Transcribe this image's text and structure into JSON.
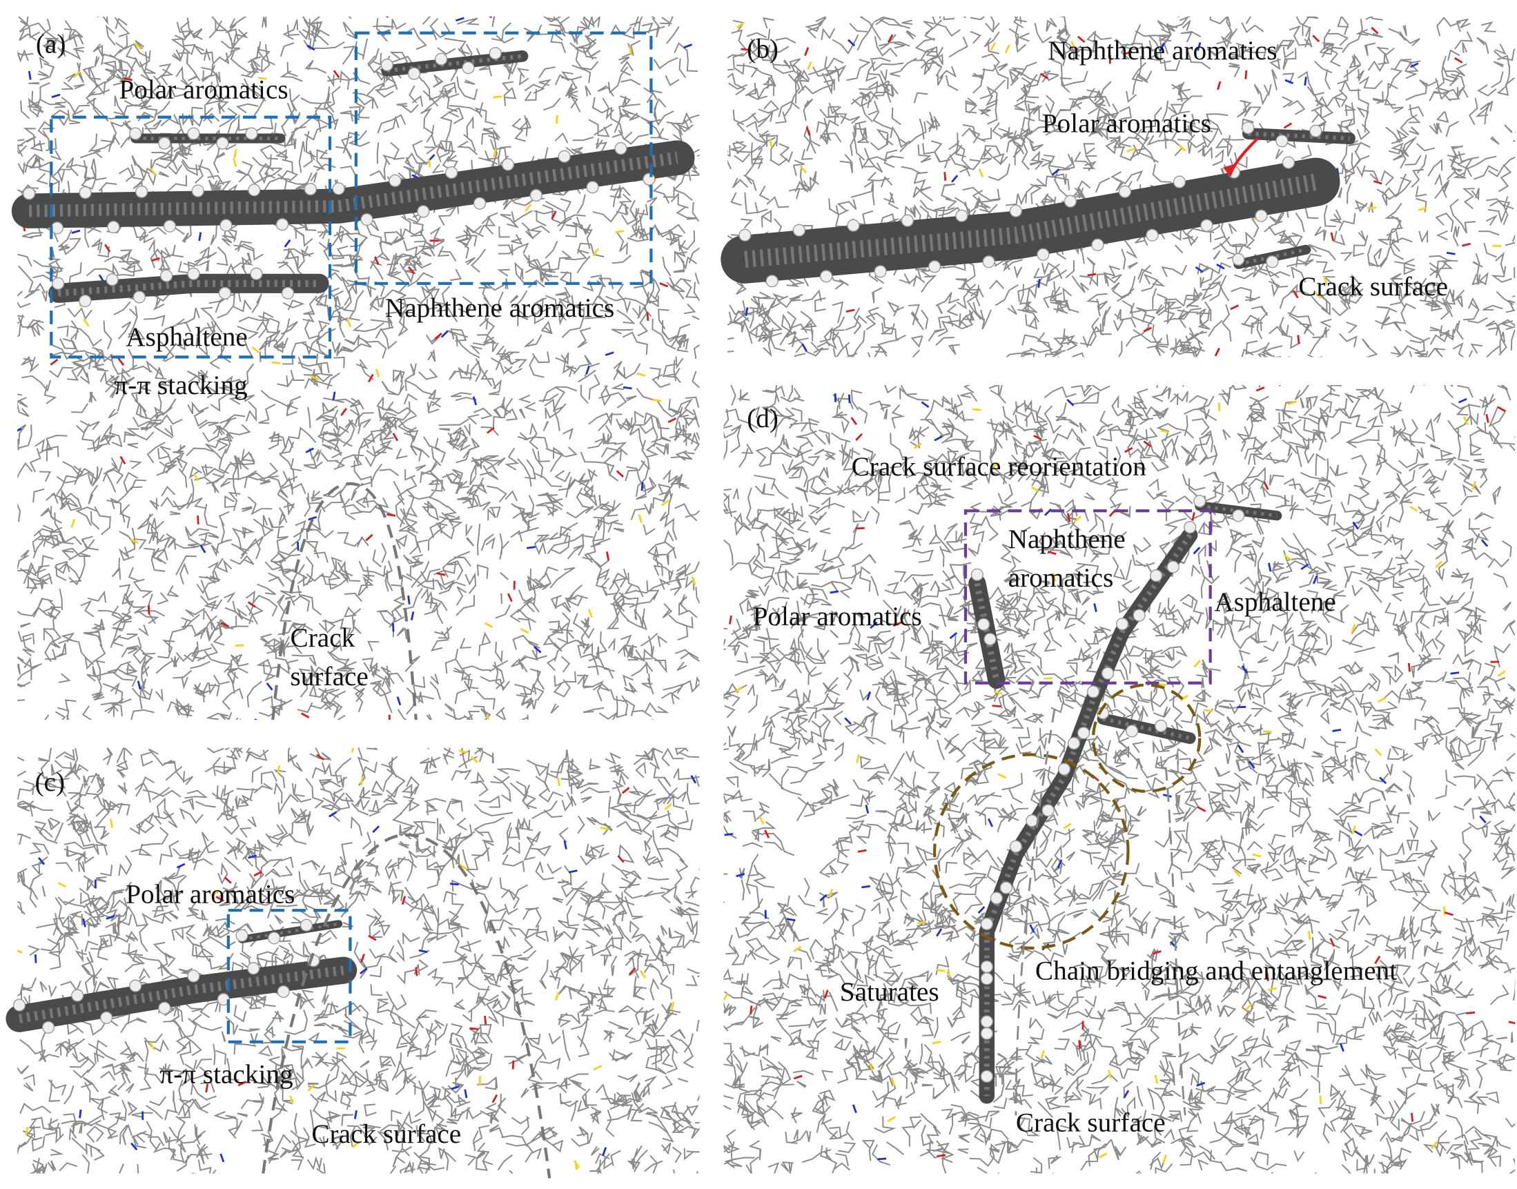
{
  "panels": [
    {
      "label": "(a)",
      "annotations": [
        {
          "text": "Polar aromatics"
        },
        {
          "text": "Naphthene aromatics"
        },
        {
          "text": "Asphaltene"
        },
        {
          "text": "π-π stacking"
        },
        {
          "lines": [
            "Crack",
            "surface"
          ]
        }
      ]
    },
    {
      "label": "(b)",
      "annotations": [
        {
          "text": "Naphthene aromatics"
        },
        {
          "text": "Polar aromatics"
        },
        {
          "text": "Crack surface"
        }
      ]
    },
    {
      "label": "(c)",
      "annotations": [
        {
          "text": "Polar aromatics"
        },
        {
          "text": "π-π stacking"
        },
        {
          "text": "Crack surface"
        }
      ]
    },
    {
      "label": "(d)",
      "annotations": [
        {
          "text": "Crack surface reorientation"
        },
        {
          "lines": [
            "Naphthene",
            "aromatics"
          ]
        },
        {
          "text": "Asphaltene"
        },
        {
          "text": "Polar aromatics"
        },
        {
          "text": "Chain bridging and entanglement"
        },
        {
          "text": "Saturates"
        },
        {
          "text": "Crack surface"
        }
      ]
    }
  ]
}
